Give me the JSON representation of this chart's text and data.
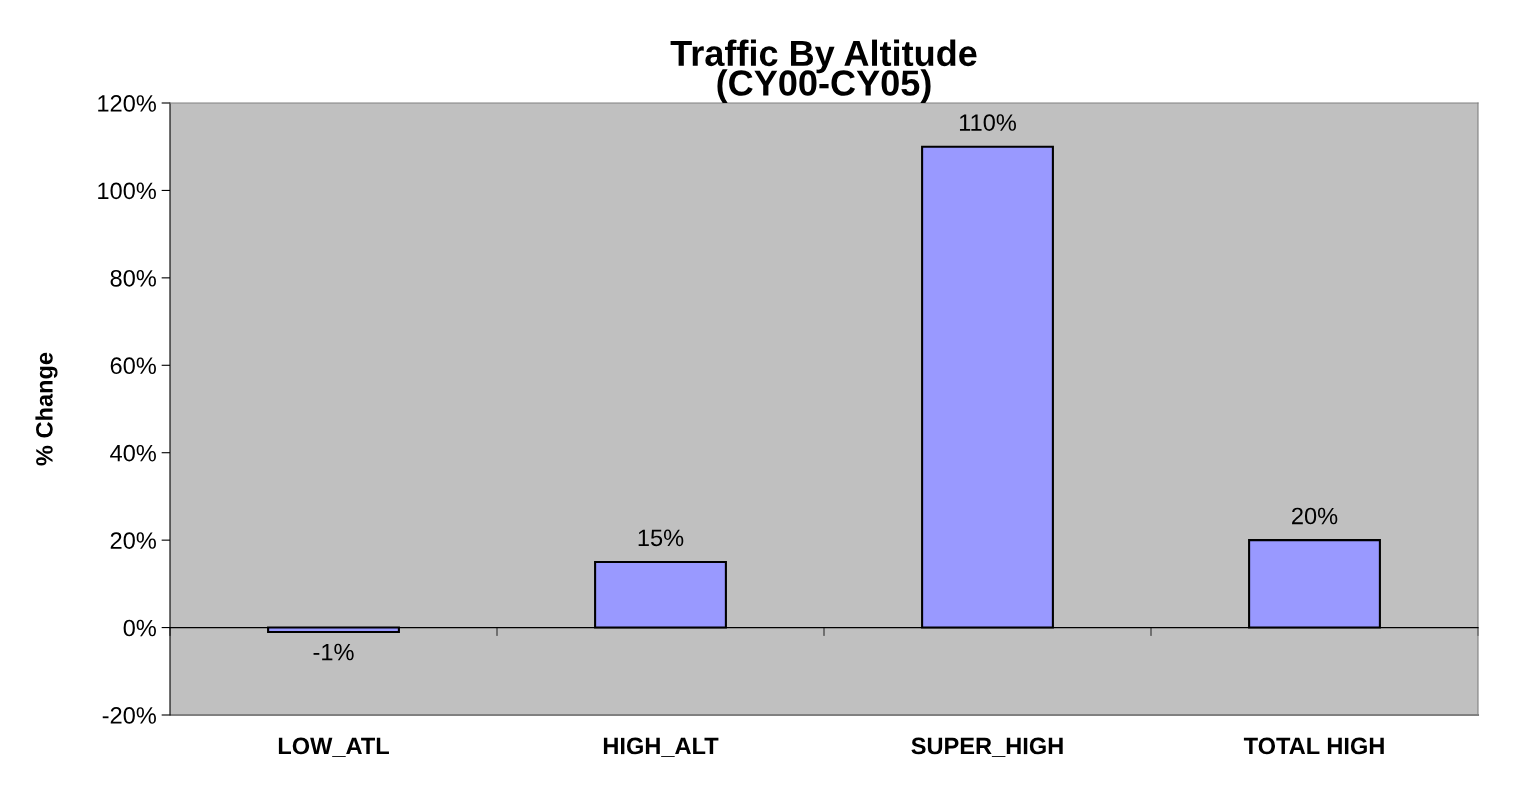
{
  "chart_data": {
    "type": "bar",
    "title": "Traffic By Altitude\n(CY00-CY05)",
    "ylabel": "% Change",
    "categories": [
      "LOW_ATL",
      "HIGH_ALT",
      "SUPER_HIGH",
      "TOTAL HIGH"
    ],
    "values": [
      -1,
      15,
      110,
      20
    ],
    "color": "#9999ff",
    "value_labels": [
      "-1%",
      "15%",
      "110%",
      "20%"
    ],
    "ylim": [
      -20,
      120
    ],
    "yticks": [
      {
        "value": -20,
        "label": "-20%"
      },
      {
        "value": 0,
        "label": "0%"
      },
      {
        "value": 20,
        "label": "20%"
      },
      {
        "value": 40,
        "label": "40%"
      },
      {
        "value": 60,
        "label": "60%"
      },
      {
        "value": 80,
        "label": "80%"
      },
      {
        "value": 100,
        "label": "100%"
      },
      {
        "value": 120,
        "label": "120%"
      }
    ],
    "legend": false
  }
}
